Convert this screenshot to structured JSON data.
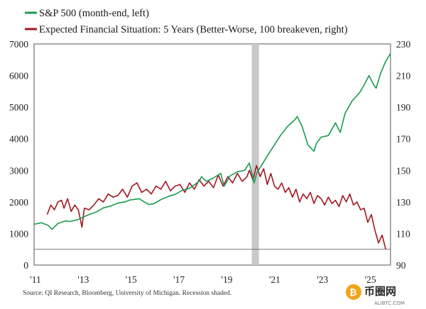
{
  "chart_data": {
    "type": "line",
    "title": "",
    "legend": [
      {
        "name": "S&P 500 (month-end, left)",
        "color": "#1a9a50",
        "axis": "left"
      },
      {
        "name": "Expected Financial Situation: 5 Years (Better-Worse, 100 breakeven, right)",
        "color": "#a31620",
        "axis": "right"
      }
    ],
    "x_ticks": [
      "'11",
      "'13",
      "'15",
      "'17",
      "'19",
      "'21",
      "'23",
      "'25"
    ],
    "x_range": [
      2011,
      2025.9
    ],
    "left_axis": {
      "ticks": [
        "0",
        "1000",
        "2000",
        "3000",
        "4000",
        "5000",
        "6000",
        "7000"
      ],
      "range": [
        0,
        7000
      ]
    },
    "right_axis": {
      "ticks": [
        "90",
        "110",
        "130",
        "150",
        "170",
        "190",
        "210",
        "230"
      ],
      "range": [
        90,
        230
      ]
    },
    "breakeven_line_right_value": 100,
    "recession_shading": [
      2020.1,
      2020.4
    ],
    "series": [
      {
        "name": "S&P 500",
        "axis": "left",
        "x": [
          2011.0,
          2011.3,
          2011.6,
          2011.75,
          2012.0,
          2012.3,
          2012.5,
          2012.8,
          2013.0,
          2013.3,
          2013.6,
          2013.9,
          2014.2,
          2014.5,
          2014.8,
          2015.0,
          2015.4,
          2015.6,
          2015.8,
          2016.0,
          2016.3,
          2016.6,
          2016.9,
          2017.2,
          2017.5,
          2017.9,
          2018.0,
          2018.2,
          2018.5,
          2018.8,
          2018.95,
          2019.2,
          2019.5,
          2019.8,
          2020.0,
          2020.2,
          2020.3,
          2020.6,
          2020.9,
          2021.0,
          2021.3,
          2021.6,
          2021.9,
          2022.0,
          2022.2,
          2022.45,
          2022.7,
          2022.8,
          2023.0,
          2023.3,
          2023.6,
          2023.8,
          2024.0,
          2024.3,
          2024.6,
          2024.8,
          2025.0,
          2025.2,
          2025.3,
          2025.5,
          2025.7,
          2025.9
        ],
        "values": [
          1290,
          1340,
          1250,
          1130,
          1320,
          1400,
          1380,
          1430,
          1500,
          1600,
          1680,
          1810,
          1870,
          1960,
          2000,
          2060,
          2100,
          2000,
          1920,
          1940,
          2070,
          2170,
          2240,
          2370,
          2430,
          2650,
          2800,
          2650,
          2760,
          2900,
          2500,
          2830,
          2950,
          3000,
          3230,
          2600,
          2900,
          3270,
          3630,
          3750,
          4100,
          4390,
          4600,
          4700,
          4400,
          3800,
          3600,
          3850,
          4050,
          4100,
          4500,
          4200,
          4800,
          5200,
          5450,
          5700,
          6000,
          5700,
          5600,
          6100,
          6450,
          6700
        ]
      },
      {
        "name": "Expected Financial Situation: 5 Years",
        "axis": "right",
        "x": [
          2011.55,
          2011.7,
          2011.85,
          2012.0,
          2012.15,
          2012.25,
          2012.4,
          2012.55,
          2012.7,
          2012.85,
          2013.0,
          2013.1,
          2013.3,
          2013.5,
          2013.7,
          2013.9,
          2014.1,
          2014.3,
          2014.5,
          2014.7,
          2014.9,
          2015.1,
          2015.3,
          2015.5,
          2015.7,
          2015.9,
          2016.1,
          2016.3,
          2016.5,
          2016.7,
          2016.9,
          2017.1,
          2017.3,
          2017.5,
          2017.7,
          2017.9,
          2018.1,
          2018.3,
          2018.5,
          2018.7,
          2018.9,
          2019.1,
          2019.3,
          2019.5,
          2019.7,
          2019.9,
          2020.0,
          2020.15,
          2020.3,
          2020.45,
          2020.6,
          2020.75,
          2020.9,
          2021.05,
          2021.2,
          2021.35,
          2021.5,
          2021.65,
          2021.8,
          2021.95,
          2022.1,
          2022.25,
          2022.4,
          2022.55,
          2022.7,
          2022.85,
          2023.0,
          2023.15,
          2023.3,
          2023.45,
          2023.6,
          2023.75,
          2023.9,
          2024.05,
          2024.2,
          2024.35,
          2024.5,
          2024.65,
          2024.8,
          2024.95,
          2025.1,
          2025.25,
          2025.4,
          2025.55,
          2025.7
        ],
        "values": [
          122,
          128,
          125,
          130,
          131,
          126,
          132,
          124,
          128,
          125,
          114,
          126,
          125,
          128,
          132,
          130,
          135,
          133,
          134,
          138,
          133,
          140,
          142,
          136,
          138,
          135,
          140,
          138,
          143,
          137,
          140,
          141,
          136,
          142,
          138,
          144,
          140,
          143,
          139,
          147,
          140,
          146,
          142,
          148,
          143,
          146,
          150,
          144,
          153,
          146,
          151,
          141,
          148,
          140,
          138,
          142,
          136,
          139,
          133,
          138,
          130,
          135,
          132,
          136,
          129,
          134,
          132,
          128,
          133,
          129,
          131,
          127,
          134,
          130,
          135,
          128,
          130,
          125,
          126,
          117,
          122,
          112,
          104,
          109,
          100
        ]
      }
    ],
    "source_note": "Source: QI Research, Bloomberg, University of Michigan. Recession shaded.",
    "watermark": {
      "main": "币圈网",
      "sub": "ALIBTC.COM"
    }
  }
}
